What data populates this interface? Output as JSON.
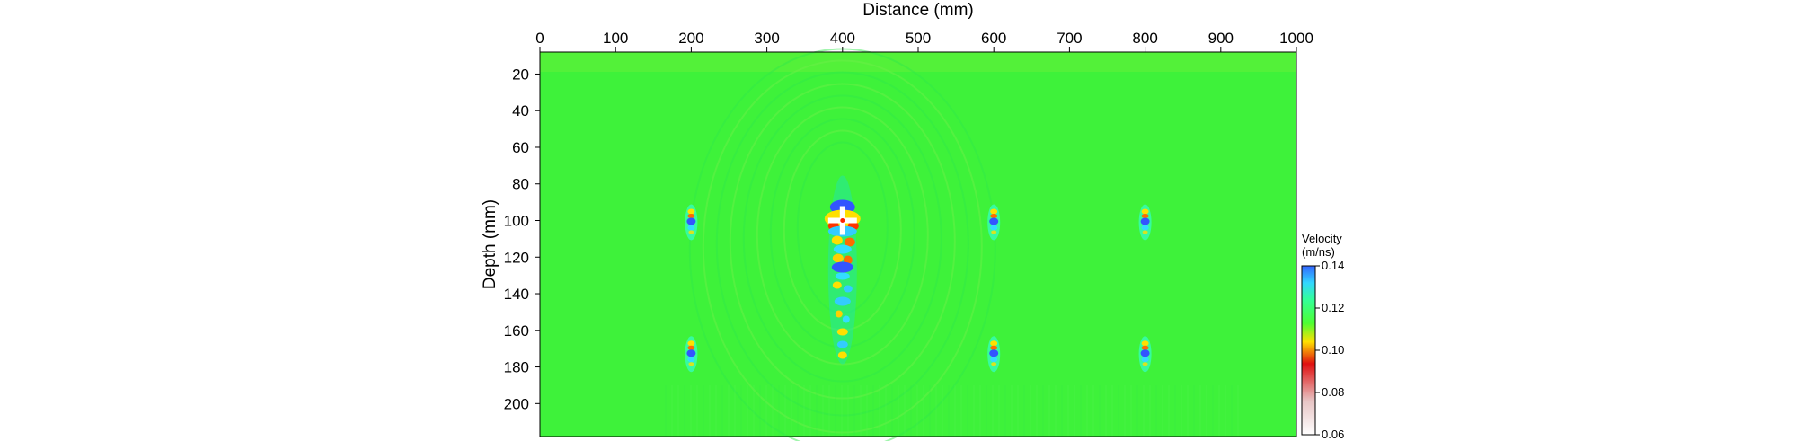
{
  "chart_data": {
    "type": "heatmap",
    "xlabel": "Distance (mm)",
    "ylabel": "Depth (mm)",
    "xlim": [
      0,
      1000
    ],
    "ylim": [
      8,
      218
    ],
    "x_ticks": [
      0,
      100,
      200,
      300,
      400,
      500,
      600,
      700,
      800,
      900,
      1000
    ],
    "y_ticks": [
      20,
      40,
      60,
      80,
      100,
      120,
      140,
      160,
      180,
      200
    ],
    "x_axis_position": "top",
    "background_value": 0.12,
    "colorbar": {
      "title_line1": "Velocity",
      "title_line2": "(m/ns)",
      "min": 0.06,
      "max": 0.14,
      "ticks": [
        "0.14",
        "0.12",
        "0.10",
        "0.08",
        "0.06"
      ],
      "tick_values": [
        0.14,
        0.12,
        0.1,
        0.08,
        0.06
      ],
      "colors": [
        "#ffffff",
        "#e8c9c9",
        "#e01010",
        "#ffe000",
        "#33ff33",
        "#33ffee",
        "#3366ff"
      ]
    },
    "anomalies": [
      {
        "x": 200,
        "y": 100,
        "type": "small"
      },
      {
        "x": 600,
        "y": 100,
        "type": "small"
      },
      {
        "x": 800,
        "y": 100,
        "type": "small"
      },
      {
        "x": 200,
        "y": 172,
        "type": "small"
      },
      {
        "x": 600,
        "y": 172,
        "type": "small"
      },
      {
        "x": 800,
        "y": 172,
        "type": "small"
      },
      {
        "x": 400,
        "y": 100,
        "type": "large"
      }
    ]
  }
}
